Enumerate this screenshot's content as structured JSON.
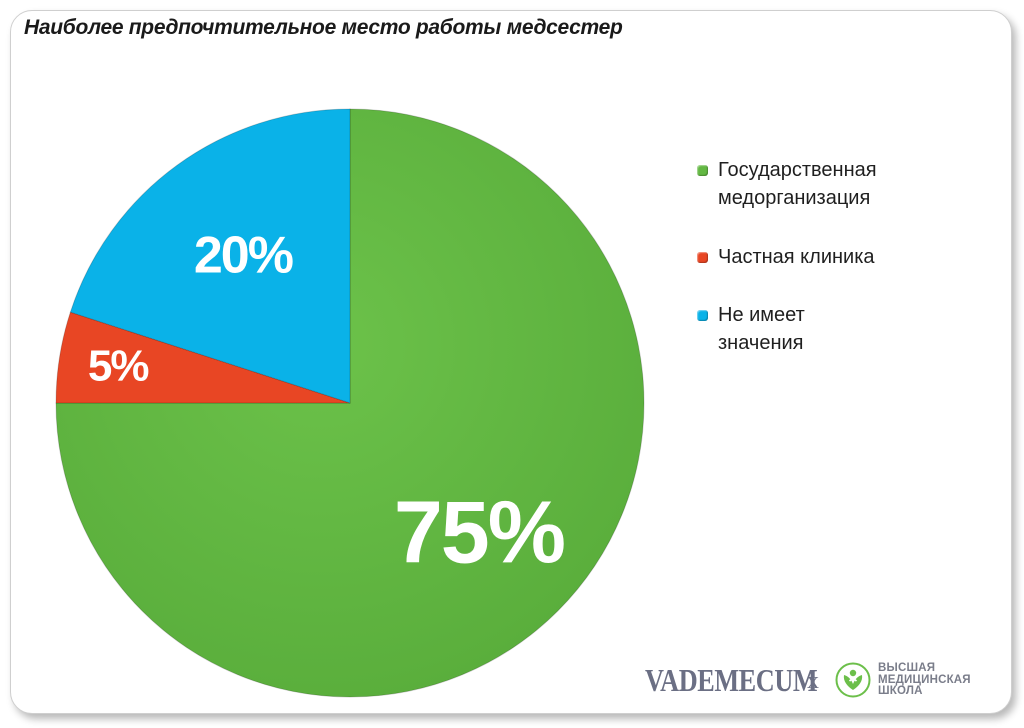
{
  "chart_data": {
    "type": "pie",
    "title": "Наиболее предпочтительное место работы медсестер",
    "slices": [
      {
        "label": "Государственная\nмедорганизация",
        "value": 75,
        "display": "75%",
        "color": "#63b843"
      },
      {
        "label": "Частная клиника",
        "value": 5,
        "display": "5%",
        "color": "#e84624"
      },
      {
        "label": "Не имеет\nзначения",
        "value": 20,
        "display": "20%",
        "color": "#0ab2e8"
      }
    ],
    "start_angle": "12 o'clock",
    "direction": "clockwise",
    "legend_position": "right"
  },
  "logos": {
    "vademecum": "VADEMECUM",
    "cross": "x",
    "school_lines": [
      "ВЫСШАЯ",
      "МЕДИЦИНСКАЯ",
      "ШКОЛА"
    ]
  }
}
